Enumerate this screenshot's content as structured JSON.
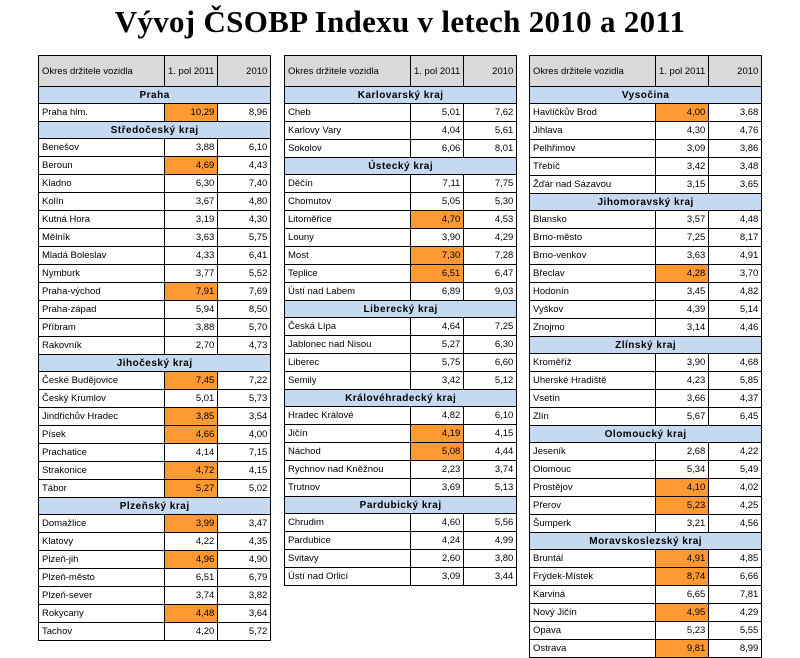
{
  "title": "Vývoj ČSOBP Indexu v letech 2010 a 2011",
  "headers": {
    "district": "Okres držitele vozidla",
    "h2011": "1. pol 2011",
    "h2010": "2010"
  },
  "colors": {
    "highlight": "#ff9933",
    "region": "#c5d9f1",
    "header": "#d9d9d9"
  },
  "tables": [
    {
      "rows": [
        {
          "region": "Praha"
        },
        {
          "name": "Praha hlm.",
          "v2011": "10,29",
          "v2010": "8,96",
          "hl": true
        },
        {
          "region": "Středočeský kraj"
        },
        {
          "name": "Benešov",
          "v2011": "3,88",
          "v2010": "6,10"
        },
        {
          "name": "Beroun",
          "v2011": "4,69",
          "v2010": "4,43",
          "hl": true
        },
        {
          "name": "Kladno",
          "v2011": "6,30",
          "v2010": "7,40"
        },
        {
          "name": "Kolín",
          "v2011": "3,67",
          "v2010": "4,80"
        },
        {
          "name": "Kutná Hora",
          "v2011": "3,19",
          "v2010": "4,30"
        },
        {
          "name": "Mělník",
          "v2011": "3,63",
          "v2010": "5,75"
        },
        {
          "name": "Mladá Boleslav",
          "v2011": "4,33",
          "v2010": "6,41"
        },
        {
          "name": "Nymburk",
          "v2011": "3,77",
          "v2010": "5,52"
        },
        {
          "name": "Praha-východ",
          "v2011": "7,91",
          "v2010": "7,69",
          "hl": true
        },
        {
          "name": "Praha-západ",
          "v2011": "5,94",
          "v2010": "8,50"
        },
        {
          "name": "Příbram",
          "v2011": "3,88",
          "v2010": "5,70"
        },
        {
          "name": "Rakovník",
          "v2011": "2,70",
          "v2010": "4,73"
        },
        {
          "region": "Jihočeský kraj"
        },
        {
          "name": "České Budějovice",
          "v2011": "7,45",
          "v2010": "7,22",
          "hl": true
        },
        {
          "name": "Český Krumlov",
          "v2011": "5,01",
          "v2010": "5,73"
        },
        {
          "name": "Jindřichův Hradec",
          "v2011": "3,85",
          "v2010": "3,54",
          "hl": true
        },
        {
          "name": "Písek",
          "v2011": "4,66",
          "v2010": "4,00",
          "hl": true
        },
        {
          "name": "Prachatice",
          "v2011": "4,14",
          "v2010": "7,15"
        },
        {
          "name": "Strakonice",
          "v2011": "4,72",
          "v2010": "4,15",
          "hl": true
        },
        {
          "name": "Tábor",
          "v2011": "5,27",
          "v2010": "5,02",
          "hl": true
        },
        {
          "region": "Plzeňský kraj"
        },
        {
          "name": "Domažlice",
          "v2011": "3,99",
          "v2010": "3,47",
          "hl": true
        },
        {
          "name": "Klatovy",
          "v2011": "4,22",
          "v2010": "4,35"
        },
        {
          "name": "Plzeň-jih",
          "v2011": "4,96",
          "v2010": "4,90",
          "hl": true
        },
        {
          "name": "Plzeň-město",
          "v2011": "6,51",
          "v2010": "6,79"
        },
        {
          "name": "Plzeň-sever",
          "v2011": "3,74",
          "v2010": "3,82"
        },
        {
          "name": "Rokycany",
          "v2011": "4,48",
          "v2010": "3,64",
          "hl": true
        },
        {
          "name": "Tachov",
          "v2011": "4,20",
          "v2010": "5,72"
        }
      ]
    },
    {
      "rows": [
        {
          "region": "Karlovarský kraj"
        },
        {
          "name": "Cheb",
          "v2011": "5,01",
          "v2010": "7,62"
        },
        {
          "name": "Karlovy Vary",
          "v2011": "4,04",
          "v2010": "5,61"
        },
        {
          "name": "Sokolov",
          "v2011": "6,06",
          "v2010": "8,01"
        },
        {
          "region": "Ústecký kraj"
        },
        {
          "name": "Děčín",
          "v2011": "7,11",
          "v2010": "7,75"
        },
        {
          "name": "Chomutov",
          "v2011": "5,05",
          "v2010": "5,30"
        },
        {
          "name": "Litoměřice",
          "v2011": "4,70",
          "v2010": "4,53",
          "hl": true
        },
        {
          "name": "Louny",
          "v2011": "3,90",
          "v2010": "4,29"
        },
        {
          "name": "Most",
          "v2011": "7,30",
          "v2010": "7,28",
          "hl": true
        },
        {
          "name": "Teplice",
          "v2011": "6,51",
          "v2010": "6,47",
          "hl": true
        },
        {
          "name": "Ústí nad Labem",
          "v2011": "6,89",
          "v2010": "9,03"
        },
        {
          "region": "Liberecký kraj"
        },
        {
          "name": "Česká Lípa",
          "v2011": "4,64",
          "v2010": "7,25"
        },
        {
          "name": "Jablonec nad Nisou",
          "v2011": "5,27",
          "v2010": "6,30"
        },
        {
          "name": "Liberec",
          "v2011": "5,75",
          "v2010": "6,60"
        },
        {
          "name": "Semily",
          "v2011": "3,42",
          "v2010": "5,12"
        },
        {
          "region": "Královéhradecký kraj"
        },
        {
          "name": "Hradec Králové",
          "v2011": "4,82",
          "v2010": "6,10"
        },
        {
          "name": "Jičín",
          "v2011": "4,19",
          "v2010": "4,15",
          "hl": true
        },
        {
          "name": "Náchod",
          "v2011": "5,08",
          "v2010": "4,44",
          "hl": true
        },
        {
          "name": "Rychnov nad Kněžnou",
          "v2011": "2,23",
          "v2010": "3,74"
        },
        {
          "name": "Trutnov",
          "v2011": "3,69",
          "v2010": "5,13"
        },
        {
          "region": "Pardubický kraj"
        },
        {
          "name": "Chrudim",
          "v2011": "4,60",
          "v2010": "5,56"
        },
        {
          "name": "Pardubice",
          "v2011": "4,24",
          "v2010": "4,99"
        },
        {
          "name": "Svitavy",
          "v2011": "2,60",
          "v2010": "3,80"
        },
        {
          "name": "Ústí nad Orlicí",
          "v2011": "3,09",
          "v2010": "3,44"
        }
      ]
    },
    {
      "rows": [
        {
          "region": "Vysočina"
        },
        {
          "name": "Havlíčkův Brod",
          "v2011": "4,00",
          "v2010": "3,68",
          "hl": true
        },
        {
          "name": "Jihlava",
          "v2011": "4,30",
          "v2010": "4,76"
        },
        {
          "name": "Pelhřimov",
          "v2011": "3,09",
          "v2010": "3,86"
        },
        {
          "name": "Třebíč",
          "v2011": "3,42",
          "v2010": "3,48"
        },
        {
          "name": "Žďár nad Sázavou",
          "v2011": "3,15",
          "v2010": "3,65"
        },
        {
          "region": "Jihomoravský kraj"
        },
        {
          "name": "Blansko",
          "v2011": "3,57",
          "v2010": "4,48"
        },
        {
          "name": "Brno-město",
          "v2011": "7,25",
          "v2010": "8,17"
        },
        {
          "name": "Brno-venkov",
          "v2011": "3,63",
          "v2010": "4,91"
        },
        {
          "name": "Břeclav",
          "v2011": "4,28",
          "v2010": "3,70",
          "hl": true
        },
        {
          "name": "Hodonín",
          "v2011": "3,45",
          "v2010": "4,82"
        },
        {
          "name": "Vyškov",
          "v2011": "4,39",
          "v2010": "5,14"
        },
        {
          "name": "Znojmo",
          "v2011": "3,14",
          "v2010": "4,46"
        },
        {
          "region": "Zlínský kraj"
        },
        {
          "name": "Kroměříž",
          "v2011": "3,90",
          "v2010": "4,68"
        },
        {
          "name": "Uherské Hradiště",
          "v2011": "4,23",
          "v2010": "5,85"
        },
        {
          "name": "Vsetín",
          "v2011": "3,66",
          "v2010": "4,37"
        },
        {
          "name": "Zlín",
          "v2011": "5,67",
          "v2010": "6,45"
        },
        {
          "region": "Olomoucký kraj"
        },
        {
          "name": "Jeseník",
          "v2011": "2,68",
          "v2010": "4,22"
        },
        {
          "name": "Olomouc",
          "v2011": "5,34",
          "v2010": "5,49"
        },
        {
          "name": "Prostějov",
          "v2011": "4,10",
          "v2010": "4,02",
          "hl": true
        },
        {
          "name": "Přerov",
          "v2011": "5,23",
          "v2010": "4,25",
          "hl": true
        },
        {
          "name": "Šumperk",
          "v2011": "3,21",
          "v2010": "4,56"
        },
        {
          "region": "Moravskoslezský kraj"
        },
        {
          "name": "Bruntál",
          "v2011": "4,91",
          "v2010": "4,85",
          "hl": true
        },
        {
          "name": "Frýdek-Místek",
          "v2011": "8,74",
          "v2010": "6,66",
          "hl": true
        },
        {
          "name": "Karviná",
          "v2011": "6,65",
          "v2010": "7,81"
        },
        {
          "name": "Nový Jičín",
          "v2011": "4,95",
          "v2010": "4,29",
          "hl": true
        },
        {
          "name": "Opava",
          "v2011": "5,23",
          "v2010": "5,55"
        },
        {
          "name": "Ostrava",
          "v2011": "9,81",
          "v2010": "8,99",
          "hl": true
        }
      ]
    }
  ]
}
